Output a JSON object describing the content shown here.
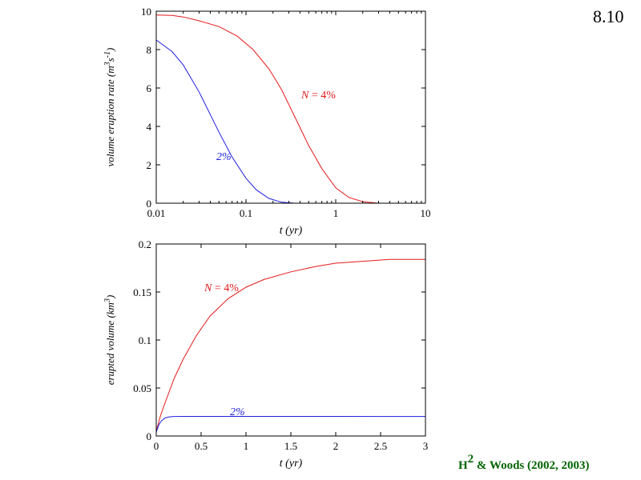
{
  "figure_number": "8.10",
  "credit": {
    "prefix": "H",
    "superscript": "2",
    "suffix": " & Woods (2002, 2003)"
  },
  "colors": {
    "red_series": "#e41a1c",
    "blue_series": "#1f1fe0",
    "credit": "#006400",
    "axis": "#000000"
  },
  "chart_data": [
    {
      "type": "line",
      "xscale": "log",
      "xlim": [
        0.01,
        10
      ],
      "ylim": [
        0,
        10
      ],
      "xticks": [
        0.01,
        0.1,
        1,
        10
      ],
      "xtick_labels": [
        "0.01",
        "0.1",
        "1",
        "10"
      ],
      "yticks": [
        0,
        2,
        4,
        6,
        8,
        10
      ],
      "ytick_labels": [
        "0",
        "2",
        "4",
        "6",
        "8",
        "10"
      ],
      "xlabel": "t (yr)",
      "ylabel": {
        "text": "volume eruption rate (m",
        "sup1": "3",
        "mid": "s",
        "sup2": "-1",
        "end": ")"
      },
      "grid": false,
      "series": [
        {
          "name": "N = 4%",
          "label_text": "N",
          "label_rest": " = 4%",
          "color": "#e41a1c",
          "x": [
            0.01,
            0.015,
            0.02,
            0.03,
            0.05,
            0.08,
            0.12,
            0.18,
            0.25,
            0.35,
            0.5,
            0.7,
            1.0,
            1.4,
            2.0,
            3.0,
            5.0,
            10.0
          ],
          "y": [
            9.8,
            9.78,
            9.7,
            9.5,
            9.2,
            8.7,
            8.0,
            7.0,
            5.9,
            4.5,
            3.0,
            1.8,
            0.8,
            0.3,
            0.08,
            0.0,
            0.0,
            0.0
          ]
        },
        {
          "name": "2%",
          "label_text": "2%",
          "color": "#1f1fe0",
          "x": [
            0.01,
            0.015,
            0.02,
            0.03,
            0.05,
            0.07,
            0.1,
            0.13,
            0.18,
            0.25,
            0.35,
            0.5,
            1.0,
            3.0,
            10.0
          ],
          "y": [
            8.5,
            7.9,
            7.2,
            5.8,
            3.7,
            2.4,
            1.3,
            0.7,
            0.25,
            0.05,
            0.0,
            0.0,
            0.0,
            0.0,
            0.0
          ]
        }
      ]
    },
    {
      "type": "line",
      "xscale": "linear",
      "xlim": [
        0,
        3
      ],
      "ylim": [
        0,
        0.2
      ],
      "xticks": [
        0,
        0.5,
        1,
        1.5,
        2,
        2.5,
        3
      ],
      "xtick_labels": [
        "0",
        "0.5",
        "1",
        "1.5",
        "2",
        "2.5",
        "3"
      ],
      "yticks": [
        0,
        0.05,
        0.1,
        0.15,
        0.2
      ],
      "ytick_labels": [
        "0",
        "0.05",
        "0.1",
        "0.15",
        "0.2"
      ],
      "xlabel": "t (yr)",
      "ylabel": {
        "text": "erupted volume (km",
        "sup1": "3",
        "mid": "",
        "sup2": "",
        "end": ")"
      },
      "grid": false,
      "series": [
        {
          "name": "N = 4%",
          "label_text": "N",
          "label_rest": " = 4%",
          "color": "#e41a1c",
          "x": [
            0,
            0.05,
            0.1,
            0.2,
            0.3,
            0.45,
            0.6,
            0.8,
            1.0,
            1.2,
            1.5,
            1.8,
            2.0,
            2.3,
            2.6,
            3.0
          ],
          "y": [
            0.005,
            0.022,
            0.035,
            0.06,
            0.08,
            0.105,
            0.125,
            0.143,
            0.155,
            0.163,
            0.171,
            0.177,
            0.18,
            0.182,
            0.184,
            0.184
          ]
        },
        {
          "name": "2%",
          "label_text": "2%",
          "color": "#1f1fe0",
          "x": [
            0,
            0.03,
            0.06,
            0.1,
            0.15,
            0.2,
            0.3,
            0.5,
            1.0,
            2.0,
            3.0
          ],
          "y": [
            0.004,
            0.012,
            0.016,
            0.019,
            0.02,
            0.0203,
            0.0204,
            0.0204,
            0.0204,
            0.0204,
            0.0203
          ]
        }
      ]
    }
  ]
}
